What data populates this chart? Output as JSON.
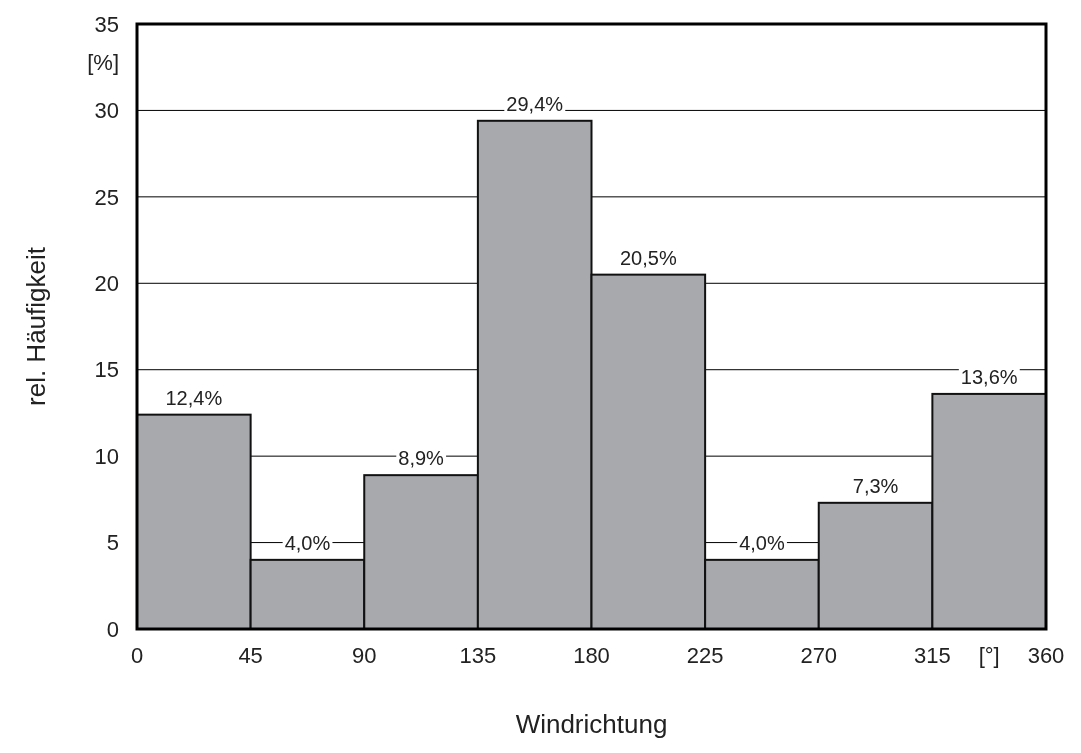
{
  "chart_data": {
    "type": "histogram",
    "xlabel": "Windrichtung",
    "ylabel": "rel. Häufigkeit",
    "bins": [
      0,
      45,
      90,
      135,
      180,
      225,
      270,
      315,
      360
    ],
    "values": [
      12.4,
      4.0,
      8.9,
      29.4,
      20.5,
      4.0,
      7.3,
      13.6
    ],
    "value_labels": [
      "12,4%",
      "4,0%",
      "8,9%",
      "29,4%",
      "20,5%",
      "4,0%",
      "7,3%",
      "13,6%"
    ],
    "color": "#a7a9ac",
    "xlim": [
      0,
      360
    ],
    "xticks": [
      0,
      45,
      90,
      135,
      180,
      225,
      270,
      315,
      360
    ],
    "ylim": [
      0,
      35
    ],
    "yticks": [
      0,
      5,
      10,
      15,
      20,
      25,
      30,
      35
    ],
    "grid": "y",
    "annotations": [
      "[%]",
      "[°]"
    ]
  }
}
